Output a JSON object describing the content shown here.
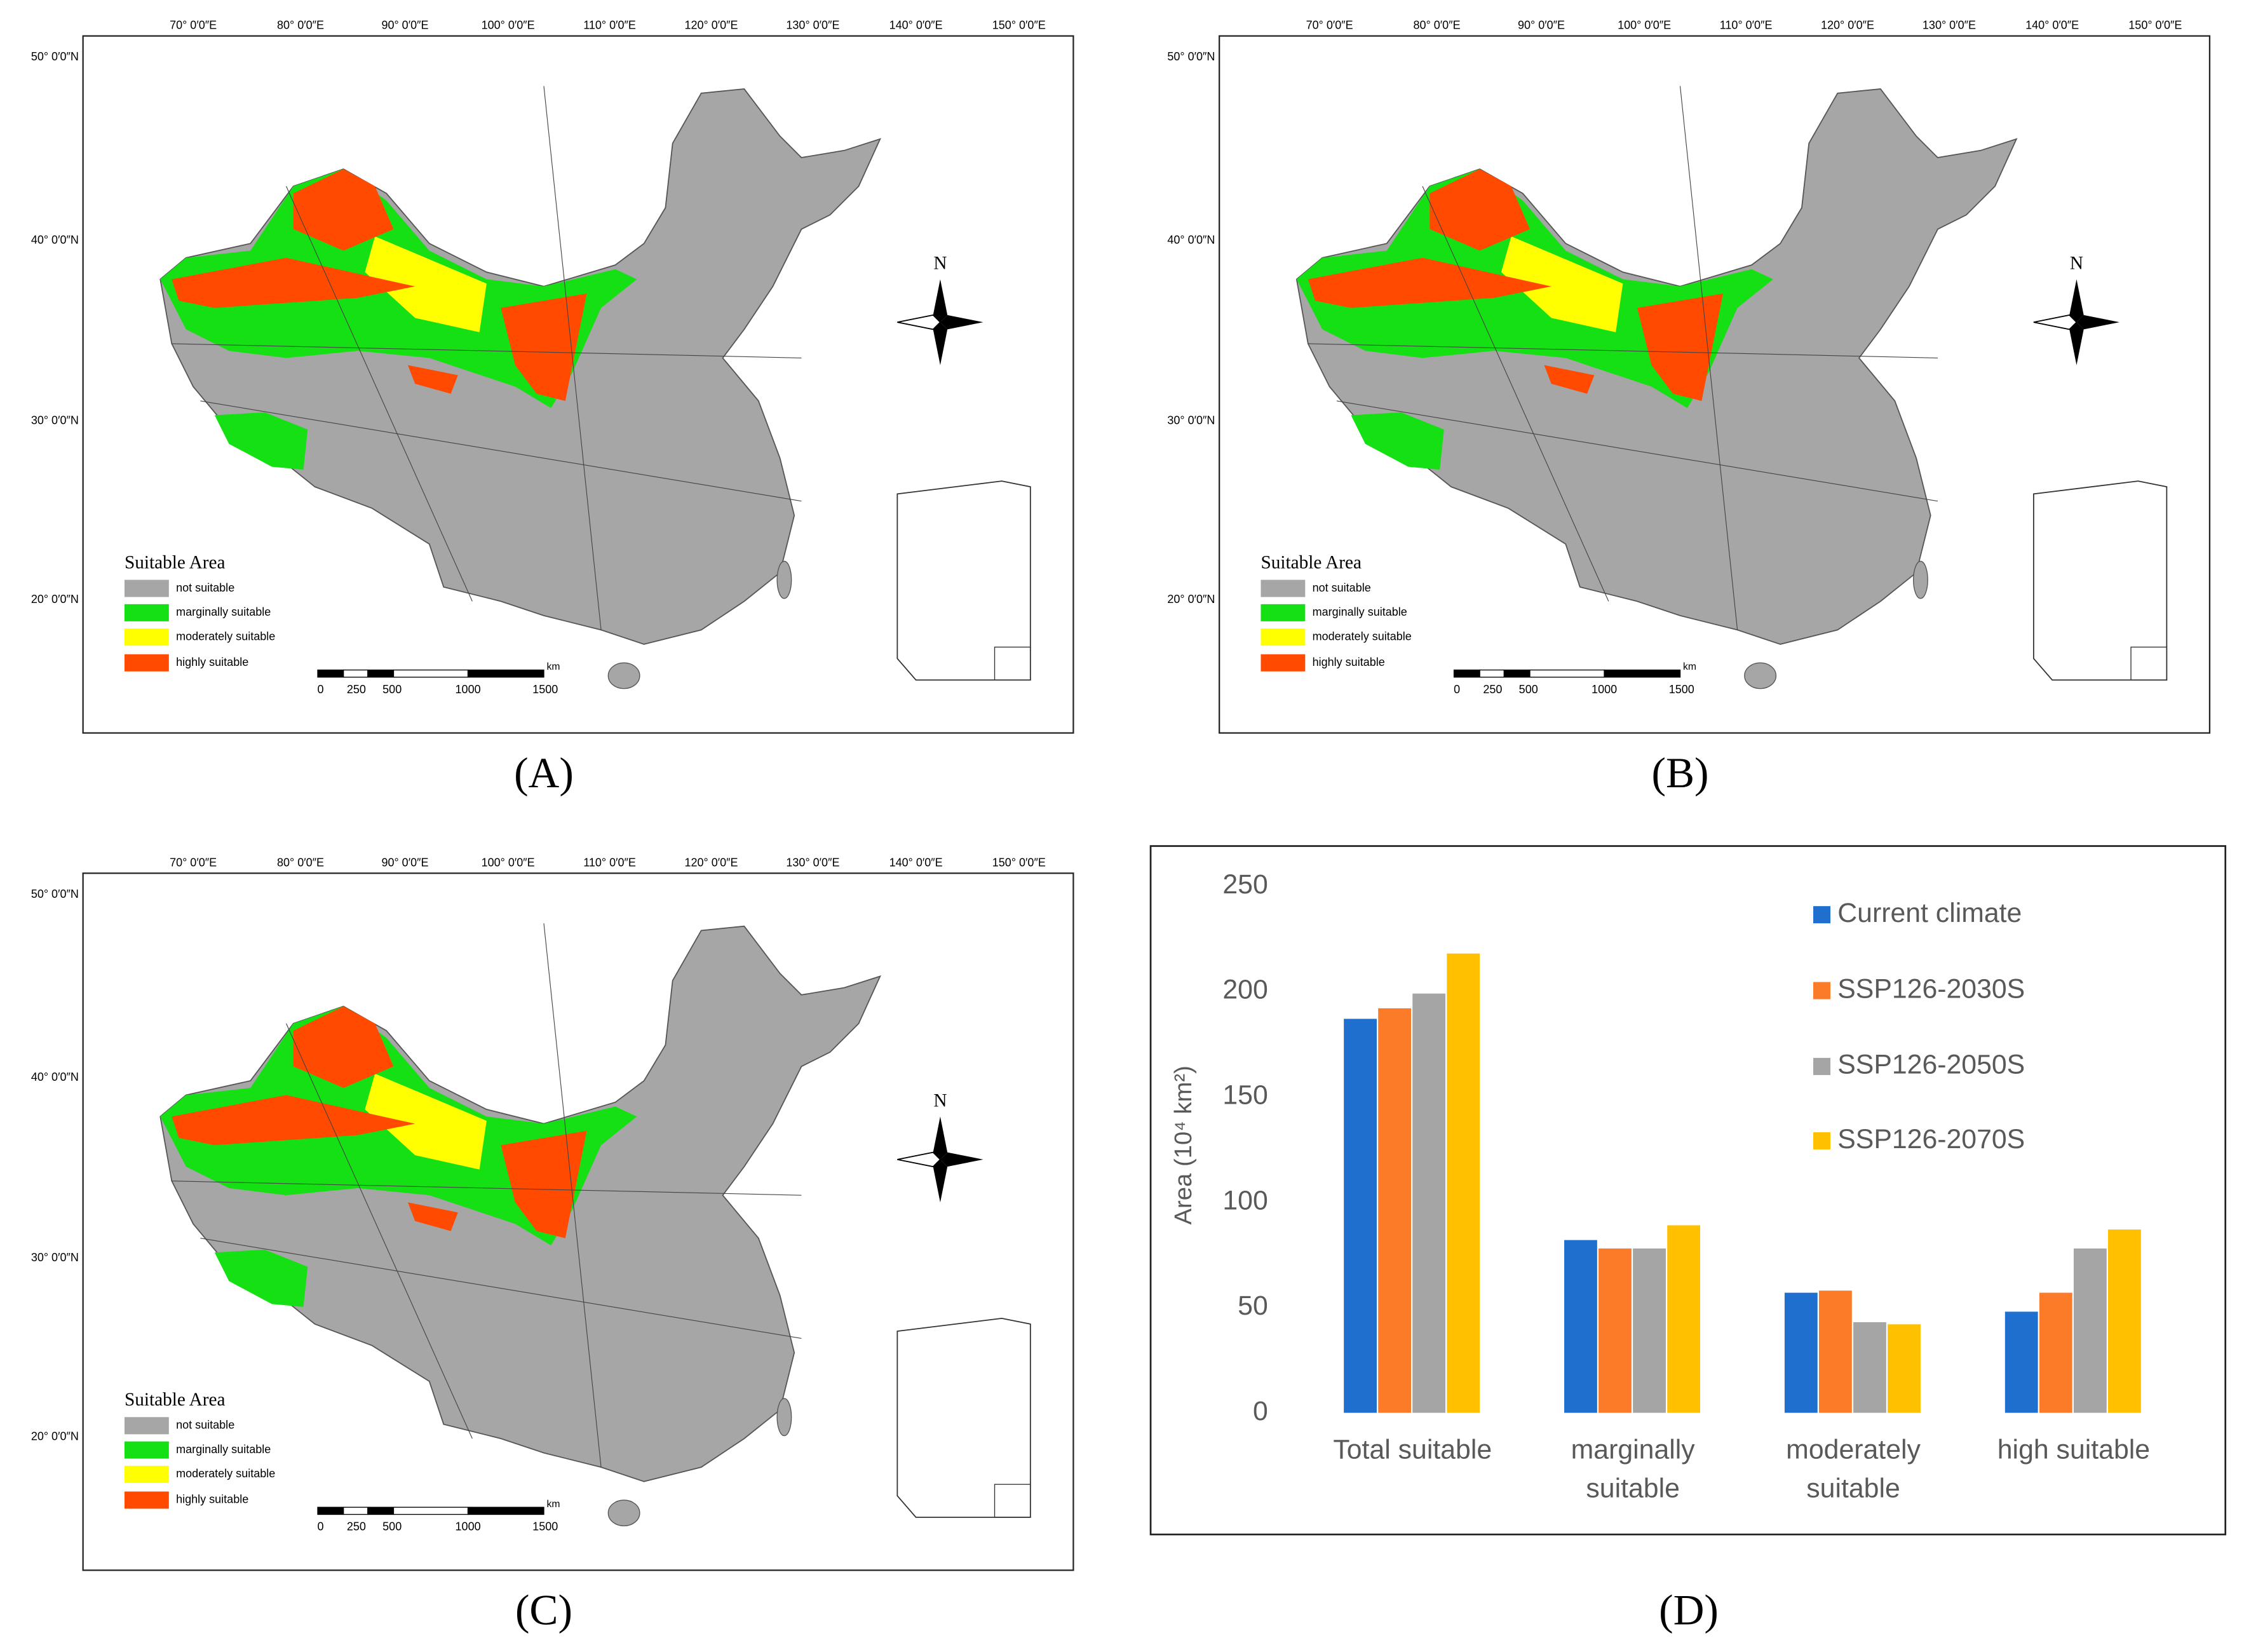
{
  "maps": {
    "longitude_labels": [
      "70° 0′0″E",
      "80° 0′0″E",
      "90° 0′0″E",
      "100° 0′0″E",
      "110° 0′0″E",
      "120° 0′0″E",
      "130° 0′0″E",
      "140° 0′0″E",
      "150° 0′0″E"
    ],
    "latitude_labels": [
      "50° 0′0″N",
      "40° 0′0″N",
      "30° 0′0″N",
      "20° 0′0″N"
    ],
    "north": "N",
    "legend": {
      "title": "Suitable Area",
      "items": [
        {
          "label": "not suitable",
          "color": "#a6a6a6"
        },
        {
          "label": "marginally suitable",
          "color": "#14e014"
        },
        {
          "label": "moderately suitable",
          "color": "#ffff00"
        },
        {
          "label": "highly suitable",
          "color": "#ff4a00"
        }
      ]
    },
    "scale": {
      "unit": "km",
      "labels": [
        "0",
        "250",
        "500",
        "1000",
        "1500"
      ]
    }
  },
  "captions": [
    "(A)",
    "(B)",
    "(C)",
    "(D)"
  ],
  "chart_data": {
    "type": "bar",
    "categories": [
      "Total suitable",
      "marginally suitable",
      "moderately suitable",
      "high suitable"
    ],
    "y_label": "Area (10⁴ km²)",
    "series": [
      {
        "name": "Current climate",
        "color": "#1f6fcf",
        "values": [
          187,
          82,
          57,
          48
        ]
      },
      {
        "name": "SSP126-2030S",
        "color": "#fb7b29",
        "values": [
          192,
          78,
          58,
          57
        ]
      },
      {
        "name": "SSP126-2050S",
        "color": "#a5a5a5",
        "values": [
          199,
          78,
          43,
          78
        ]
      },
      {
        "name": "SSP126-2070S",
        "color": "#ffc000",
        "values": [
          218,
          89,
          42,
          87
        ]
      }
    ],
    "ylim": [
      0,
      250
    ],
    "yticks": [
      0,
      50,
      100,
      150,
      200,
      250
    ],
    "grid": false
  }
}
